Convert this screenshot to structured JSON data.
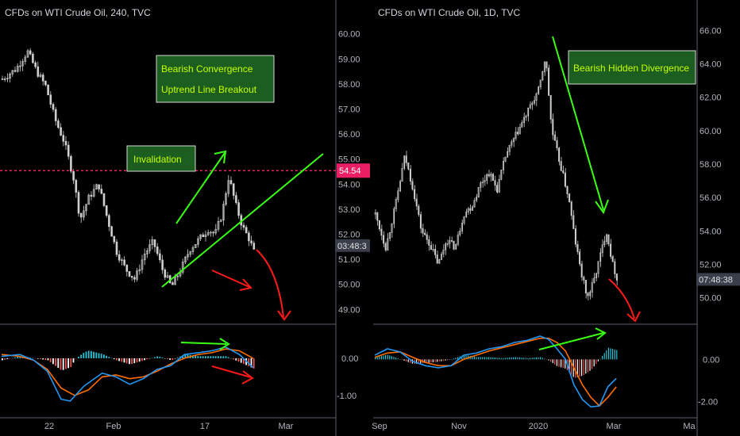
{
  "chart_data": [
    {
      "type": "candlestick",
      "title": "CFDs on WTI Crude Oil, 240, TVC",
      "ylim": [
        48.6,
        60.4
      ],
      "y_ticks": [
        49.0,
        50.0,
        51.0,
        52.0,
        53.0,
        54.0,
        55.0,
        56.0,
        57.0,
        58.0,
        59.0,
        60.0
      ],
      "y_tick_labels": [
        "49.00",
        "50.00",
        "51.00",
        "52.00",
        "53.00",
        "54.00",
        "55.00",
        "56.00",
        "57.00",
        "58.00",
        "59.00",
        "60.00"
      ],
      "x_ticks": [
        "22",
        "Feb",
        "17",
        "Mar"
      ],
      "price_path": [
        [
          0,
          58.2
        ],
        [
          6,
          58.6
        ],
        [
          11,
          59.3
        ],
        [
          15,
          58.5
        ],
        [
          19,
          57.9
        ],
        [
          23,
          56.6
        ],
        [
          27,
          55.7
        ],
        [
          31,
          54.3
        ],
        [
          34,
          52.6
        ],
        [
          38,
          53.5
        ],
        [
          42,
          54.0
        ],
        [
          46,
          52.6
        ],
        [
          50,
          51.3
        ],
        [
          54,
          50.6
        ],
        [
          58,
          50.2
        ],
        [
          62,
          51.2
        ],
        [
          66,
          51.7
        ],
        [
          70,
          50.6
        ],
        [
          74,
          49.9
        ],
        [
          78,
          50.6
        ],
        [
          82,
          51.4
        ],
        [
          86,
          51.8
        ],
        [
          90,
          52.2
        ],
        [
          93,
          52.0
        ],
        [
          96,
          52.8
        ],
        [
          99,
          54.3
        ],
        [
          102,
          53.2
        ],
        [
          105,
          52.3
        ],
        [
          108,
          51.8
        ],
        [
          110,
          51.3
        ]
      ],
      "horizontal_line": {
        "value": 54.54,
        "label": "54.54",
        "color": "#e91e63"
      },
      "current_price_label": "03:48:3",
      "current_price": 51.55,
      "annotations": [
        {
          "text": "Bearish Convergence",
          "line2": "Uptrend Line Breakout"
        },
        {
          "text": "Invalidation"
        }
      ],
      "macd": {
        "ylim": [
          -1.45,
          0.85
        ],
        "y_ticks": [
          0.0,
          -1.0
        ],
        "y_tick_labels": [
          "0.00",
          "-1.00"
        ],
        "macd_line": [
          [
            0,
            0.05
          ],
          [
            8,
            0.1
          ],
          [
            14,
            -0.05
          ],
          [
            20,
            -0.35
          ],
          [
            26,
            -1.1
          ],
          [
            30,
            -1.15
          ],
          [
            36,
            -0.75
          ],
          [
            44,
            -0.4
          ],
          [
            50,
            -0.5
          ],
          [
            56,
            -0.7
          ],
          [
            62,
            -0.55
          ],
          [
            68,
            -0.3
          ],
          [
            74,
            -0.2
          ],
          [
            80,
            0.1
          ],
          [
            86,
            0.15
          ],
          [
            92,
            0.2
          ],
          [
            98,
            0.3
          ],
          [
            104,
            0.1
          ],
          [
            110,
            -0.25
          ]
        ],
        "signal_line": [
          [
            0,
            0.1
          ],
          [
            8,
            0.05
          ],
          [
            14,
            -0.05
          ],
          [
            20,
            -0.3
          ],
          [
            26,
            -0.8
          ],
          [
            32,
            -1.0
          ],
          [
            38,
            -0.85
          ],
          [
            44,
            -0.5
          ],
          [
            50,
            -0.45
          ],
          [
            56,
            -0.55
          ],
          [
            62,
            -0.5
          ],
          [
            68,
            -0.35
          ],
          [
            74,
            -0.15
          ],
          [
            80,
            0.0
          ],
          [
            86,
            0.1
          ],
          [
            92,
            0.15
          ],
          [
            98,
            0.25
          ],
          [
            104,
            0.2
          ],
          [
            110,
            0.0
          ]
        ]
      }
    },
    {
      "type": "candlestick",
      "title": "CFDs on WTI Crude Oil, 1D, TVC",
      "ylim": [
        48.7,
        66.4
      ],
      "y_ticks": [
        50.0,
        52.0,
        54.0,
        56.0,
        58.0,
        60.0,
        62.0,
        64.0,
        66.0
      ],
      "y_tick_labels": [
        "50.00",
        "52.00",
        "54.00",
        "56.00",
        "58.00",
        "60.00",
        "62.00",
        "64.00",
        "66.00"
      ],
      "x_ticks": [
        "Sep",
        "Nov",
        "2020",
        "Mar",
        "Ma"
      ],
      "price_path": [
        [
          0,
          55.0
        ],
        [
          5,
          53.0
        ],
        [
          10,
          55.8
        ],
        [
          14,
          58.5
        ],
        [
          18,
          56.5
        ],
        [
          22,
          54.0
        ],
        [
          26,
          53.2
        ],
        [
          30,
          52.0
        ],
        [
          34,
          53.5
        ],
        [
          38,
          53.0
        ],
        [
          42,
          55.0
        ],
        [
          46,
          55.5
        ],
        [
          50,
          56.8
        ],
        [
          54,
          57.5
        ],
        [
          58,
          56.5
        ],
        [
          62,
          58.5
        ],
        [
          66,
          59.5
        ],
        [
          70,
          60.5
        ],
        [
          74,
          61.5
        ],
        [
          78,
          62.5
        ],
        [
          81,
          64.5
        ],
        [
          84,
          60.0
        ],
        [
          88,
          58.0
        ],
        [
          92,
          56.0
        ],
        [
          95,
          53.5
        ],
        [
          98,
          51.5
        ],
        [
          101,
          50.0
        ],
        [
          104,
          51.0
        ],
        [
          107,
          52.5
        ],
        [
          110,
          54.0
        ],
        [
          113,
          52.0
        ],
        [
          115,
          51.2
        ]
      ],
      "current_price_label": "07:48:38",
      "current_price": 51.1,
      "annotations": [
        {
          "text": "Bearish Hidden Divergence"
        }
      ],
      "macd": {
        "ylim": [
          -2.5,
          1.55
        ],
        "y_ticks": [
          0.0,
          -2.0
        ],
        "y_tick_labels": [
          "0.00",
          "-2.00"
        ],
        "macd_line": [
          [
            0,
            0.2
          ],
          [
            6,
            0.5
          ],
          [
            12,
            0.35
          ],
          [
            18,
            -0.1
          ],
          [
            24,
            -0.3
          ],
          [
            30,
            -0.4
          ],
          [
            36,
            -0.3
          ],
          [
            42,
            0.2
          ],
          [
            48,
            0.3
          ],
          [
            54,
            0.5
          ],
          [
            60,
            0.6
          ],
          [
            66,
            0.8
          ],
          [
            72,
            0.9
          ],
          [
            78,
            1.1
          ],
          [
            82,
            0.95
          ],
          [
            86,
            0.5
          ],
          [
            90,
            0.0
          ],
          [
            94,
            -1.2
          ],
          [
            98,
            -1.9
          ],
          [
            102,
            -2.25
          ],
          [
            106,
            -2.2
          ],
          [
            110,
            -1.3
          ],
          [
            114,
            -0.9
          ]
        ],
        "signal_line": [
          [
            0,
            0.1
          ],
          [
            6,
            0.3
          ],
          [
            12,
            0.35
          ],
          [
            18,
            0.1
          ],
          [
            24,
            -0.15
          ],
          [
            30,
            -0.3
          ],
          [
            36,
            -0.3
          ],
          [
            42,
            0.0
          ],
          [
            48,
            0.2
          ],
          [
            54,
            0.4
          ],
          [
            60,
            0.55
          ],
          [
            66,
            0.7
          ],
          [
            72,
            0.85
          ],
          [
            78,
            1.0
          ],
          [
            82,
            1.0
          ],
          [
            86,
            0.8
          ],
          [
            90,
            0.4
          ],
          [
            94,
            -0.4
          ],
          [
            98,
            -1.2
          ],
          [
            102,
            -1.8
          ],
          [
            106,
            -2.2
          ],
          [
            110,
            -1.8
          ],
          [
            114,
            -1.3
          ]
        ]
      }
    }
  ],
  "colors": {
    "background": "#000000",
    "candle": "#cfcfcf",
    "macd": "#2196f3",
    "signal": "#ff6d00",
    "hist_pos": "#26c6da",
    "hist_neg": "#ef5350",
    "annotation_bg": "#1b5e20",
    "annotation_border": "#d8d8d8",
    "annotation_text": "#c6ff00",
    "green_arrow": "#39ff14",
    "red_arrow": "#ff1a1a",
    "invalidation_line": "#e91e63"
  }
}
